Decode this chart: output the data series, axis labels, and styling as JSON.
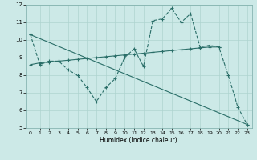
{
  "xlabel": "Humidex (Indice chaleur)",
  "xlim": [
    -0.5,
    23.5
  ],
  "ylim": [
    5,
    12
  ],
  "xticks": [
    0,
    1,
    2,
    3,
    4,
    5,
    6,
    7,
    8,
    9,
    10,
    11,
    12,
    13,
    14,
    15,
    16,
    17,
    18,
    19,
    20,
    21,
    22,
    23
  ],
  "yticks": [
    5,
    6,
    7,
    8,
    9,
    10,
    11,
    12
  ],
  "bg_color": "#cce9e7",
  "line_color": "#2a6e68",
  "grid_color": "#aed4d0",
  "line1_y": [
    10.3,
    8.6,
    8.8,
    8.8,
    8.3,
    8.0,
    7.3,
    6.5,
    7.3,
    7.8,
    9.0,
    9.5,
    8.5,
    11.1,
    11.2,
    11.8,
    11.0,
    11.5,
    9.6,
    9.7,
    9.6,
    8.0,
    6.2,
    5.2
  ],
  "line2_x": [
    0,
    1,
    2,
    3,
    4,
    5,
    6,
    7,
    8,
    9,
    10,
    11,
    12,
    13,
    14,
    15,
    16,
    17,
    18,
    19,
    20
  ],
  "line2_y": [
    8.6,
    8.7,
    8.75,
    8.8,
    8.85,
    8.9,
    8.95,
    9.0,
    9.05,
    9.1,
    9.15,
    9.2,
    9.25,
    9.3,
    9.35,
    9.4,
    9.45,
    9.5,
    9.55,
    9.6,
    9.6
  ],
  "line3_x": [
    0,
    23
  ],
  "line3_y": [
    10.3,
    5.2
  ]
}
